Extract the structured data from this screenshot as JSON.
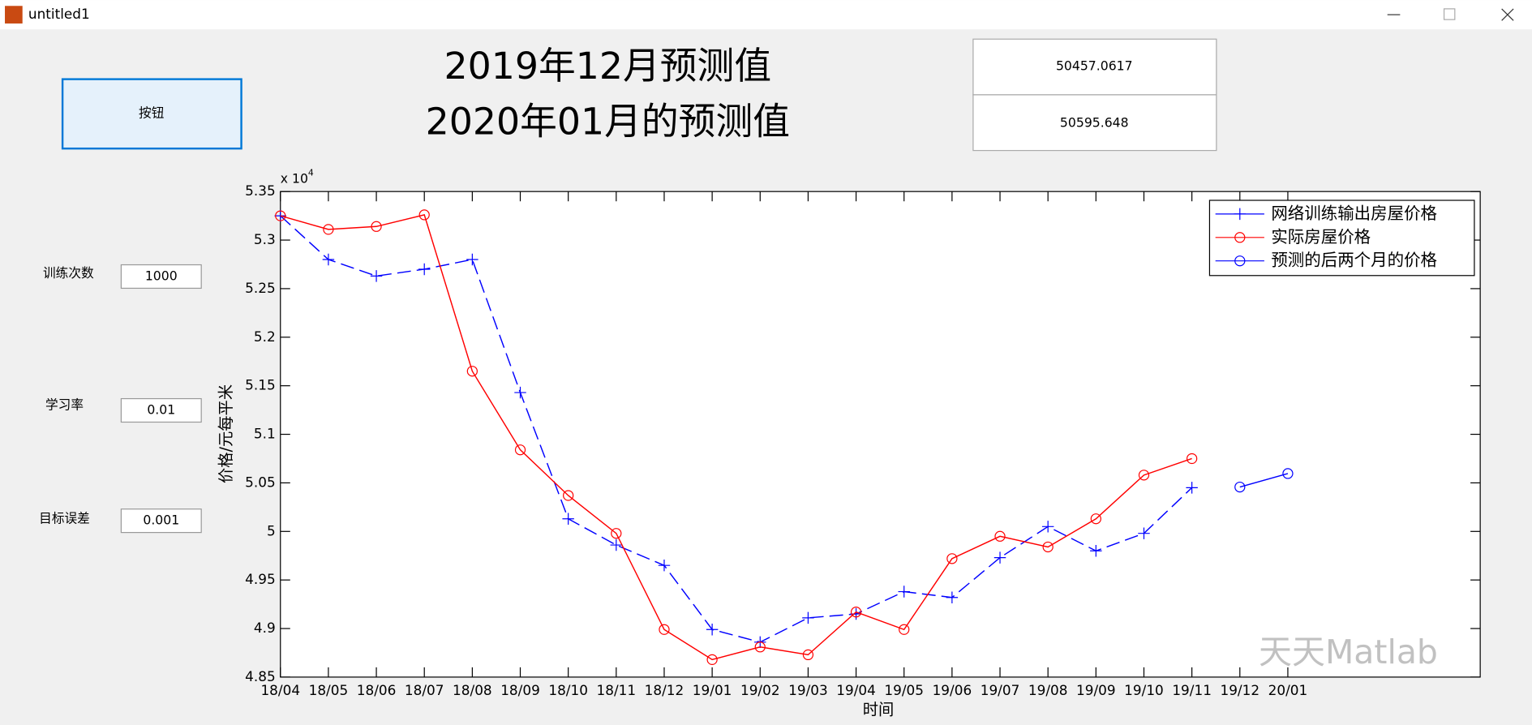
{
  "window": {
    "title": "untitled1"
  },
  "button": {
    "label": "按钮"
  },
  "headings": [
    "2019年12月预测值",
    "2020年01月的预测值"
  ],
  "outputs": [
    "50457.0617",
    "50595.648"
  ],
  "params": [
    {
      "label": "训练次数",
      "value": "1000"
    },
    {
      "label": "学习率",
      "value": "0.01"
    },
    {
      "label": "目标误差",
      "value": "0.001"
    }
  ],
  "watermark": "天天Matlab",
  "chart_data": {
    "type": "line",
    "xlabel": "时间",
    "ylabel": "价格/元每平米",
    "y_scale_label": {
      "base": "x 10",
      "exponent": "4"
    },
    "categories": [
      "18/04",
      "18/05",
      "18/06",
      "18/07",
      "18/08",
      "18/09",
      "18/10",
      "18/11",
      "18/12",
      "19/01",
      "19/02",
      "19/03",
      "19/04",
      "19/05",
      "19/06",
      "19/07",
      "19/08",
      "19/09",
      "19/10",
      "19/11",
      "19/12",
      "20/01"
    ],
    "ylim": [
      4.85,
      5.35
    ],
    "yticks": [
      4.85,
      4.9,
      4.95,
      5,
      5.05,
      5.1,
      5.15,
      5.2,
      5.25,
      5.3,
      5.35
    ],
    "legend": "upper right",
    "series": [
      {
        "name": "网络训练输出房屋价格",
        "color": "#0000ff",
        "marker": "+",
        "linestyle": "dashed",
        "values": [
          5.325,
          5.28,
          5.263,
          5.27,
          5.28,
          5.143,
          5.013,
          4.986,
          4.965,
          4.899,
          4.886,
          4.911,
          4.915,
          4.938,
          4.932,
          4.973,
          5.005,
          4.98,
          4.998,
          5.045,
          null,
          null
        ]
      },
      {
        "name": "实际房屋价格",
        "color": "#ff0000",
        "marker": "o",
        "linestyle": "solid",
        "values": [
          5.325,
          5.311,
          5.314,
          5.326,
          5.165,
          5.084,
          5.037,
          4.998,
          4.899,
          4.868,
          4.881,
          4.873,
          4.917,
          4.899,
          4.972,
          4.995,
          4.984,
          5.013,
          5.058,
          5.075,
          null,
          null
        ]
      },
      {
        "name": "预测的后两个月的价格",
        "color": "#0000ff",
        "marker": "o",
        "linestyle": "solid",
        "values": [
          null,
          null,
          null,
          null,
          null,
          null,
          null,
          null,
          null,
          null,
          null,
          null,
          null,
          null,
          null,
          null,
          null,
          null,
          null,
          null,
          5.0457,
          5.0596
        ]
      }
    ]
  }
}
